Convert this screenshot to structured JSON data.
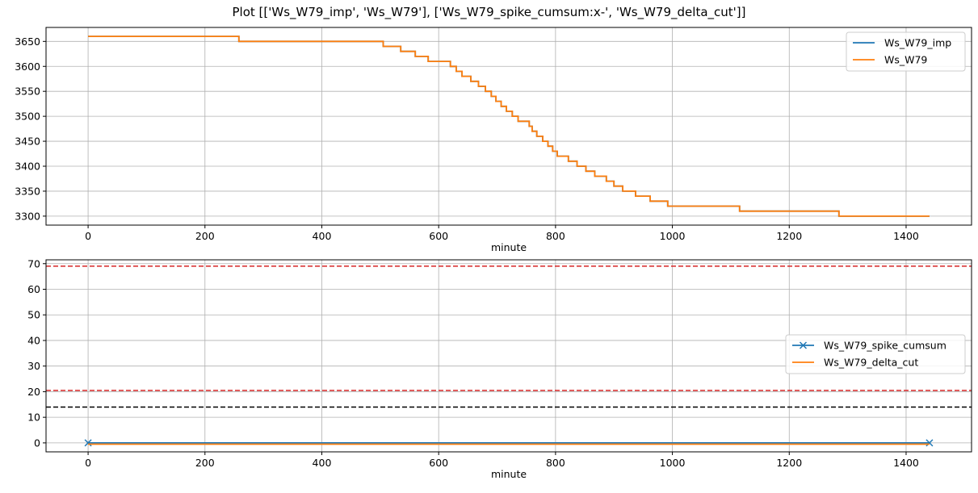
{
  "figure": {
    "title": "Plot [['Ws_W79_imp', 'Ws_W79'], ['Ws_W79_spike_cumsum:x-', 'Ws_W79_delta_cut']]"
  },
  "colors": {
    "blue": "#1f77b4",
    "orange": "#ff7f0e",
    "red": "#d62728",
    "black": "#000000",
    "grid": "#b0b0b0"
  },
  "chart_data": [
    {
      "type": "line",
      "xlabel": "minute",
      "ylabel": "",
      "xlim": [
        -72,
        1512
      ],
      "ylim": [
        3282,
        3678
      ],
      "xticks": [
        0,
        200,
        400,
        600,
        800,
        1000,
        1200,
        1400
      ],
      "yticks": [
        3300,
        3350,
        3400,
        3450,
        3500,
        3550,
        3600,
        3650
      ],
      "grid": true,
      "legend_position": "upper right",
      "series": [
        {
          "name": "Ws_W79_imp",
          "color": "#1f77b4",
          "step": true,
          "points": [
            [
              0,
              3660
            ],
            [
              258,
              3660
            ],
            [
              258,
              3650
            ],
            [
              505,
              3650
            ],
            [
              505,
              3640
            ],
            [
              535,
              3640
            ],
            [
              535,
              3630
            ],
            [
              560,
              3630
            ],
            [
              560,
              3620
            ],
            [
              582,
              3620
            ],
            [
              582,
              3610
            ],
            [
              620,
              3610
            ],
            [
              620,
              3600
            ],
            [
              630,
              3600
            ],
            [
              630,
              3590
            ],
            [
              640,
              3590
            ],
            [
              640,
              3580
            ],
            [
              655,
              3580
            ],
            [
              655,
              3570
            ],
            [
              668,
              3570
            ],
            [
              668,
              3560
            ],
            [
              680,
              3560
            ],
            [
              680,
              3550
            ],
            [
              690,
              3550
            ],
            [
              690,
              3540
            ],
            [
              698,
              3540
            ],
            [
              698,
              3530
            ],
            [
              707,
              3530
            ],
            [
              707,
              3520
            ],
            [
              716,
              3520
            ],
            [
              716,
              3510
            ],
            [
              726,
              3510
            ],
            [
              726,
              3500
            ],
            [
              736,
              3500
            ],
            [
              736,
              3490
            ],
            [
              755,
              3490
            ],
            [
              755,
              3480
            ],
            [
              760,
              3480
            ],
            [
              760,
              3470
            ],
            [
              768,
              3470
            ],
            [
              768,
              3460
            ],
            [
              778,
              3460
            ],
            [
              778,
              3450
            ],
            [
              787,
              3450
            ],
            [
              787,
              3440
            ],
            [
              795,
              3440
            ],
            [
              795,
              3430
            ],
            [
              803,
              3430
            ],
            [
              803,
              3420
            ],
            [
              822,
              3420
            ],
            [
              822,
              3410
            ],
            [
              837,
              3410
            ],
            [
              837,
              3400
            ],
            [
              852,
              3400
            ],
            [
              852,
              3390
            ],
            [
              867,
              3390
            ],
            [
              867,
              3380
            ],
            [
              887,
              3380
            ],
            [
              887,
              3370
            ],
            [
              900,
              3370
            ],
            [
              900,
              3360
            ],
            [
              915,
              3360
            ],
            [
              915,
              3350
            ],
            [
              937,
              3350
            ],
            [
              937,
              3340
            ],
            [
              962,
              3340
            ],
            [
              962,
              3330
            ],
            [
              992,
              3330
            ],
            [
              992,
              3320
            ],
            [
              1115,
              3320
            ],
            [
              1115,
              3310
            ],
            [
              1285,
              3310
            ],
            [
              1285,
              3300
            ],
            [
              1440,
              3300
            ]
          ]
        },
        {
          "name": "Ws_W79",
          "color": "#ff7f0e",
          "step": true,
          "points": [
            [
              0,
              3660
            ],
            [
              258,
              3660
            ],
            [
              258,
              3650
            ],
            [
              505,
              3650
            ],
            [
              505,
              3640
            ],
            [
              535,
              3640
            ],
            [
              535,
              3630
            ],
            [
              560,
              3630
            ],
            [
              560,
              3620
            ],
            [
              582,
              3620
            ],
            [
              582,
              3610
            ],
            [
              620,
              3610
            ],
            [
              620,
              3600
            ],
            [
              630,
              3600
            ],
            [
              630,
              3590
            ],
            [
              640,
              3590
            ],
            [
              640,
              3580
            ],
            [
              655,
              3580
            ],
            [
              655,
              3570
            ],
            [
              668,
              3570
            ],
            [
              668,
              3560
            ],
            [
              680,
              3560
            ],
            [
              680,
              3550
            ],
            [
              690,
              3550
            ],
            [
              690,
              3540
            ],
            [
              698,
              3540
            ],
            [
              698,
              3530
            ],
            [
              707,
              3530
            ],
            [
              707,
              3520
            ],
            [
              716,
              3520
            ],
            [
              716,
              3510
            ],
            [
              726,
              3510
            ],
            [
              726,
              3500
            ],
            [
              736,
              3500
            ],
            [
              736,
              3490
            ],
            [
              755,
              3490
            ],
            [
              755,
              3480
            ],
            [
              760,
              3480
            ],
            [
              760,
              3470
            ],
            [
              768,
              3470
            ],
            [
              768,
              3460
            ],
            [
              778,
              3460
            ],
            [
              778,
              3450
            ],
            [
              787,
              3450
            ],
            [
              787,
              3440
            ],
            [
              795,
              3440
            ],
            [
              795,
              3430
            ],
            [
              803,
              3430
            ],
            [
              803,
              3420
            ],
            [
              822,
              3420
            ],
            [
              822,
              3410
            ],
            [
              837,
              3410
            ],
            [
              837,
              3400
            ],
            [
              852,
              3400
            ],
            [
              852,
              3390
            ],
            [
              867,
              3390
            ],
            [
              867,
              3380
            ],
            [
              887,
              3380
            ],
            [
              887,
              3370
            ],
            [
              900,
              3370
            ],
            [
              900,
              3360
            ],
            [
              915,
              3360
            ],
            [
              915,
              3350
            ],
            [
              937,
              3350
            ],
            [
              937,
              3340
            ],
            [
              962,
              3340
            ],
            [
              962,
              3330
            ],
            [
              992,
              3330
            ],
            [
              992,
              3320
            ],
            [
              1115,
              3320
            ],
            [
              1115,
              3310
            ],
            [
              1285,
              3310
            ],
            [
              1285,
              3300
            ],
            [
              1440,
              3300
            ]
          ]
        }
      ]
    },
    {
      "type": "line",
      "xlabel": "minute",
      "ylabel": "",
      "xlim": [
        -72,
        1512
      ],
      "ylim": [
        -3.5,
        71.5
      ],
      "xticks": [
        0,
        200,
        400,
        600,
        800,
        1000,
        1200,
        1400
      ],
      "yticks": [
        0,
        10,
        20,
        30,
        40,
        50,
        60,
        70
      ],
      "grid": true,
      "legend_position": "center right",
      "series": [
        {
          "name": "Ws_W79_spike_cumsum",
          "color": "#1f77b4",
          "marker": "x",
          "points": [
            [
              0,
              0
            ],
            [
              1440,
              0
            ]
          ]
        },
        {
          "name": "Ws_W79_delta_cut",
          "color": "#ff7f0e",
          "points": [
            [
              0,
              -0.5
            ],
            [
              1440,
              -0.5
            ]
          ]
        }
      ],
      "hlines": [
        {
          "y": 69,
          "color": "#d62728",
          "style": "dashed"
        },
        {
          "y": 20.5,
          "color": "#d62728",
          "style": "dashed"
        },
        {
          "y": 14,
          "color": "#000000",
          "style": "dashed"
        }
      ]
    }
  ]
}
